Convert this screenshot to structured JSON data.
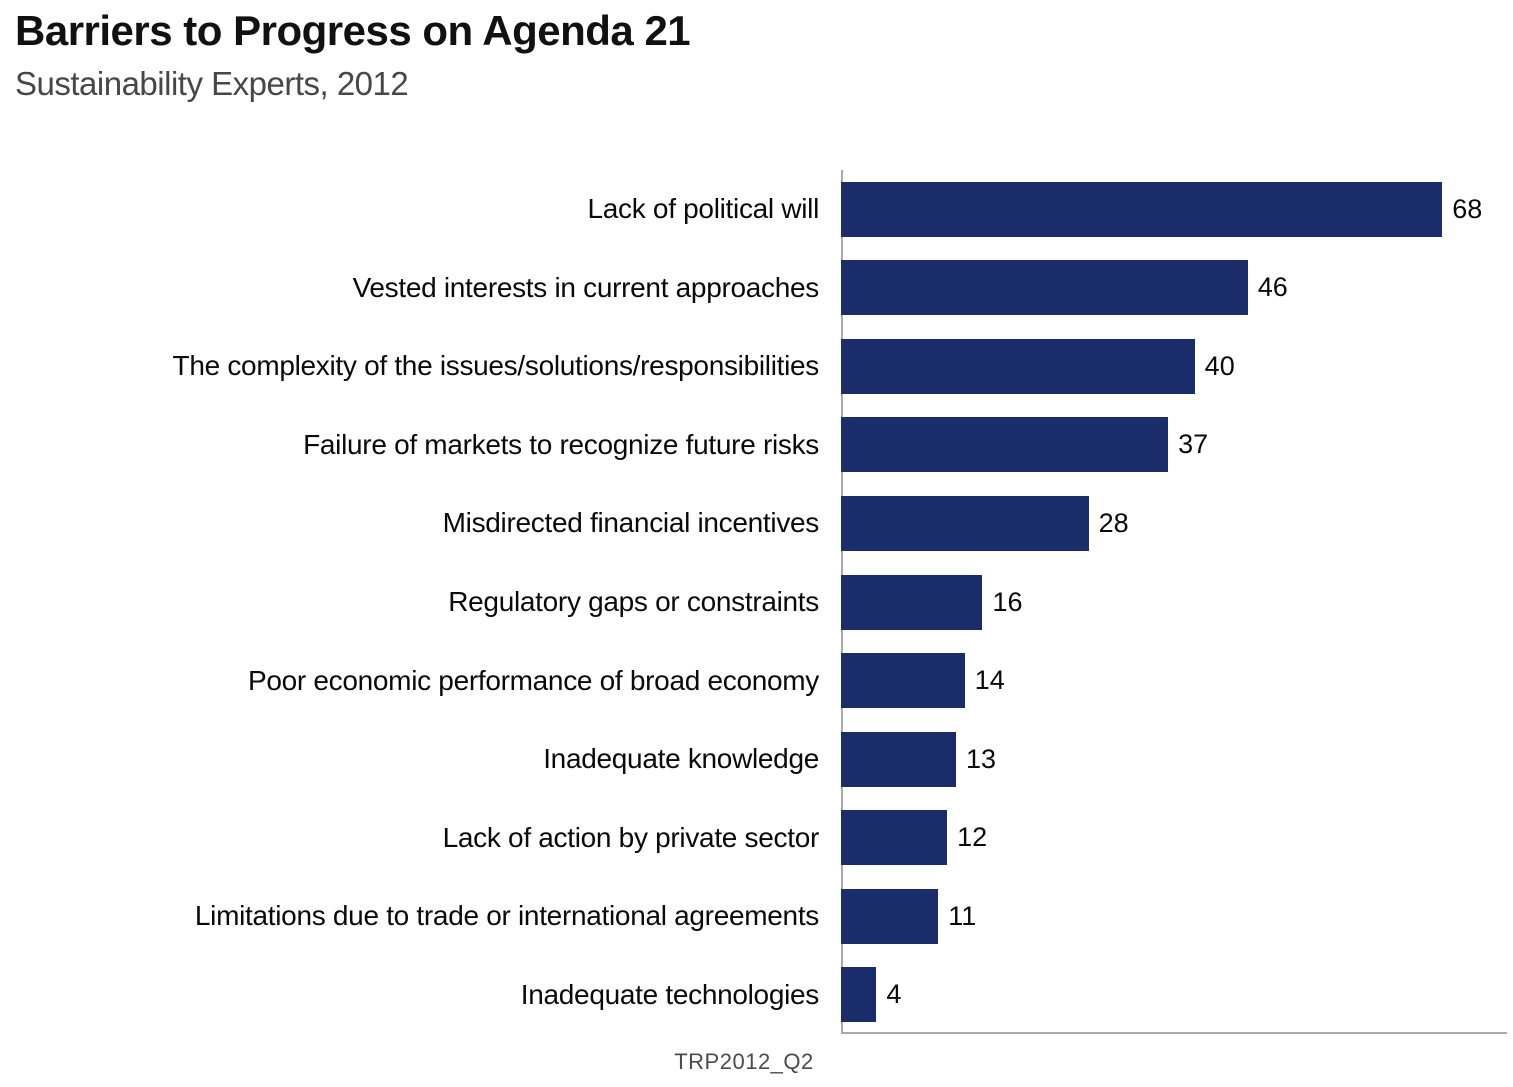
{
  "page": {
    "title": "Barriers to Progress on Agenda 21",
    "subtitle": "Sustainability Experts, 2012",
    "footnote": "TRP2012_Q2"
  },
  "chart_data": {
    "type": "bar",
    "orientation": "horizontal",
    "title": "Barriers to Progress on Agenda 21",
    "subtitle": "Sustainability Experts, 2012",
    "categories": [
      "Lack of political will",
      "Vested interests in current approaches",
      "The complexity of the issues/solutions/responsibilities",
      "Failure of markets to recognize future risks",
      "Misdirected financial incentives",
      "Regulatory gaps or constraints",
      "Poor economic performance of broad economy",
      "Inadequate knowledge",
      "Lack of action by private sector",
      "Limitations due to trade or international agreements",
      "Inadequate technologies"
    ],
    "values": [
      68,
      46,
      40,
      37,
      28,
      16,
      14,
      13,
      12,
      11,
      4
    ],
    "xlim": [
      0,
      76
    ],
    "value_labels_shown": true,
    "grid": false,
    "legend": false,
    "bar_color": "#1b2c6b",
    "axis_color": "#ababab",
    "footnote": "TRP2012_Q2"
  }
}
